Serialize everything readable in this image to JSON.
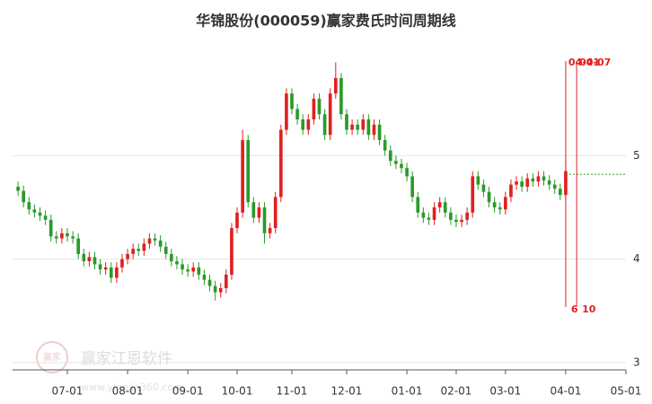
{
  "chart_data": {
    "type": "candlestick",
    "title": "华锦股份(000059)赢家费氏时间周期线",
    "open": [
      4.7,
      4.66,
      4.55,
      4.48,
      4.45,
      4.42,
      4.38,
      4.22,
      4.2,
      4.25,
      4.22,
      4.2,
      4.05,
      3.98,
      4.02,
      3.95,
      3.9,
      3.92,
      3.82,
      3.92,
      4.0,
      4.05,
      4.1,
      4.08,
      4.15,
      4.2,
      4.18,
      4.12,
      4.05,
      3.98,
      3.95,
      3.9,
      3.88,
      3.92,
      3.85,
      3.8,
      3.74,
      3.68,
      3.72,
      3.85,
      4.3,
      4.45,
      5.15,
      4.55,
      4.4,
      4.5,
      4.25,
      4.3,
      4.6,
      5.25,
      5.6,
      5.45,
      5.35,
      5.25,
      5.35,
      5.55,
      5.4,
      5.2,
      5.6,
      5.75,
      5.4,
      5.25,
      5.3,
      5.25,
      5.35,
      5.2,
      5.3,
      5.15,
      5.05,
      4.95,
      4.92,
      4.88,
      4.8,
      4.6,
      4.45,
      4.4,
      4.38,
      4.5,
      4.55,
      4.45,
      4.38,
      4.36,
      4.38,
      4.45,
      4.8,
      4.72,
      4.65,
      4.55,
      4.5,
      4.48,
      4.6,
      4.72,
      4.75,
      4.7,
      4.78,
      4.75,
      4.8,
      4.76,
      4.72,
      4.68,
      4.62
    ],
    "high": [
      4.75,
      4.71,
      4.6,
      4.53,
      4.5,
      4.47,
      4.43,
      4.27,
      4.3,
      4.3,
      4.27,
      4.25,
      4.1,
      4.07,
      4.07,
      4.0,
      3.97,
      3.97,
      3.97,
      4.05,
      4.1,
      4.15,
      4.15,
      4.2,
      4.25,
      4.25,
      4.23,
      4.17,
      4.1,
      4.03,
      4.0,
      3.95,
      3.97,
      3.97,
      3.9,
      3.85,
      3.79,
      3.77,
      3.9,
      4.35,
      4.5,
      5.25,
      5.2,
      4.6,
      4.55,
      4.55,
      4.35,
      4.65,
      5.3,
      5.65,
      5.65,
      5.5,
      5.4,
      5.4,
      5.6,
      5.6,
      5.45,
      5.65,
      5.9,
      5.8,
      5.45,
      5.35,
      5.35,
      5.4,
      5.4,
      5.35,
      5.35,
      5.2,
      5.1,
      5.0,
      4.97,
      4.93,
      4.85,
      4.65,
      4.5,
      4.45,
      4.55,
      4.6,
      4.6,
      4.5,
      4.43,
      4.43,
      4.5,
      4.85,
      4.85,
      4.77,
      4.7,
      4.6,
      4.55,
      4.65,
      4.77,
      4.8,
      4.8,
      4.83,
      4.83,
      4.85,
      4.85,
      4.81,
      4.77,
      4.73,
      4.95
    ],
    "low": [
      4.61,
      4.5,
      4.43,
      4.4,
      4.37,
      4.33,
      4.17,
      4.15,
      4.15,
      4.17,
      4.15,
      4.0,
      3.93,
      3.93,
      3.9,
      3.85,
      3.85,
      3.77,
      3.77,
      3.87,
      3.95,
      4.0,
      4.03,
      4.03,
      4.1,
      4.13,
      4.07,
      4.0,
      3.93,
      3.9,
      3.85,
      3.83,
      3.83,
      3.8,
      3.75,
      3.69,
      3.6,
      3.63,
      3.67,
      3.8,
      4.25,
      4.4,
      4.5,
      4.35,
      4.35,
      4.15,
      4.2,
      4.25,
      4.55,
      5.2,
      5.4,
      5.3,
      5.2,
      5.2,
      5.3,
      5.35,
      5.15,
      5.15,
      5.55,
      5.35,
      5.2,
      5.2,
      5.2,
      5.2,
      5.15,
      5.15,
      5.1,
      5.0,
      4.9,
      4.87,
      4.83,
      4.75,
      4.55,
      4.4,
      4.35,
      4.33,
      4.33,
      4.45,
      4.4,
      4.33,
      4.31,
      4.31,
      4.33,
      4.4,
      4.67,
      4.6,
      4.5,
      4.45,
      4.43,
      4.43,
      4.55,
      4.67,
      4.65,
      4.65,
      4.7,
      4.7,
      4.71,
      4.67,
      4.63,
      4.57,
      4.57
    ],
    "close": [
      4.66,
      4.55,
      4.48,
      4.45,
      4.42,
      4.38,
      4.22,
      4.2,
      4.25,
      4.22,
      4.2,
      4.05,
      3.98,
      4.02,
      3.95,
      3.9,
      3.92,
      3.82,
      3.92,
      4.0,
      4.05,
      4.1,
      4.08,
      4.15,
      4.2,
      4.18,
      4.12,
      4.05,
      3.98,
      3.95,
      3.9,
      3.88,
      3.92,
      3.85,
      3.8,
      3.74,
      3.68,
      3.72,
      3.85,
      4.3,
      4.45,
      5.15,
      4.55,
      4.4,
      4.5,
      4.25,
      4.3,
      4.6,
      5.25,
      5.6,
      5.45,
      5.35,
      5.25,
      5.35,
      5.55,
      5.4,
      5.2,
      5.6,
      5.75,
      5.4,
      5.25,
      5.3,
      5.25,
      5.35,
      5.2,
      5.3,
      5.15,
      5.05,
      4.95,
      4.92,
      4.88,
      4.8,
      4.6,
      4.45,
      4.4,
      4.38,
      4.5,
      4.55,
      4.45,
      4.38,
      4.36,
      4.38,
      4.45,
      4.8,
      4.72,
      4.65,
      4.55,
      4.5,
      4.48,
      4.6,
      4.72,
      4.75,
      4.7,
      4.78,
      4.75,
      4.8,
      4.76,
      4.72,
      4.68,
      4.62,
      4.85
    ],
    "up_color": "#e02020",
    "down_color": "#2a9a2a",
    "xlim": [
      -1,
      111
    ],
    "xticks": [
      {
        "value": 9,
        "label": "07-01"
      },
      {
        "value": 20,
        "label": "08-01"
      },
      {
        "value": 31,
        "label": "09-01"
      },
      {
        "value": 40,
        "label": "10-01"
      },
      {
        "value": 50,
        "label": "11-01"
      },
      {
        "value": 60,
        "label": "12-01"
      },
      {
        "value": 71,
        "label": "01-01"
      },
      {
        "value": 80,
        "label": "02-01"
      },
      {
        "value": 89,
        "label": "03-01"
      },
      {
        "value": 100,
        "label": "04-01"
      },
      {
        "value": 111,
        "label": "05-01"
      }
    ],
    "ylim": [
      2.93,
      6.07
    ],
    "yticks": [
      3,
      4,
      5
    ],
    "grid": true,
    "cycle_lines": [
      {
        "x": 100,
        "label": "04-01",
        "bottom_label": "6"
      },
      {
        "x": 102,
        "label": "04-07",
        "bottom_label": "10"
      }
    ],
    "cycle_color": "#e02020",
    "reference_line": 4.82
  },
  "watermark": {
    "text": "赢家江恩软件",
    "url": "www.yingjia360.com",
    "logo": "赢家"
  }
}
